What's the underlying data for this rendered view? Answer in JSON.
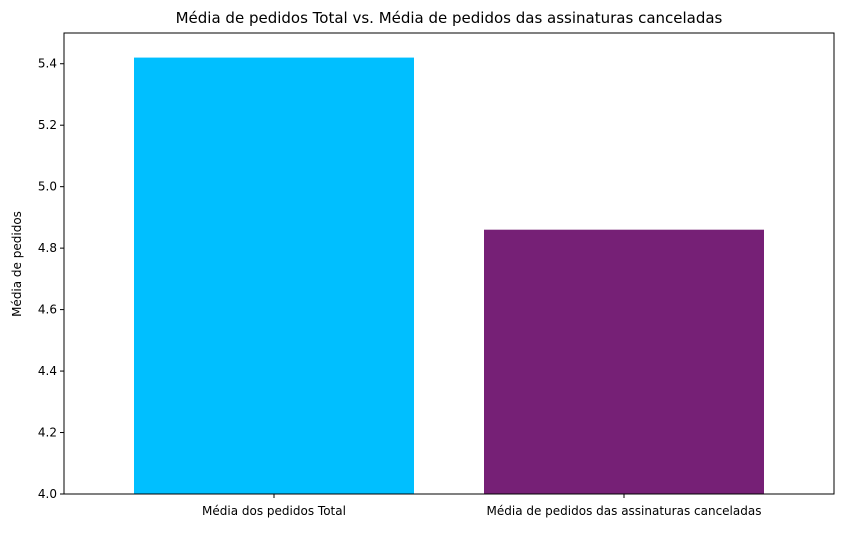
{
  "chart_data": {
    "type": "bar",
    "title": "Média de pedidos Total vs. Média de pedidos das assinaturas canceladas",
    "xlabel": "",
    "ylabel": "Média de pedidos",
    "categories": [
      "Média dos pedidos Total",
      "Média de pedidos das assinaturas canceladas"
    ],
    "values": [
      5.42,
      4.86
    ],
    "colors": [
      "#00bfff",
      "#762076"
    ],
    "ylim": [
      4.0,
      5.5
    ],
    "yticks": [
      4.0,
      4.2,
      4.4,
      4.6,
      4.8,
      5.0,
      5.2,
      5.4
    ],
    "ytick_labels": [
      "4.0",
      "4.2",
      "4.4",
      "4.6",
      "4.8",
      "5.0",
      "5.2",
      "5.4"
    ],
    "grid": false,
    "legend": "none"
  }
}
